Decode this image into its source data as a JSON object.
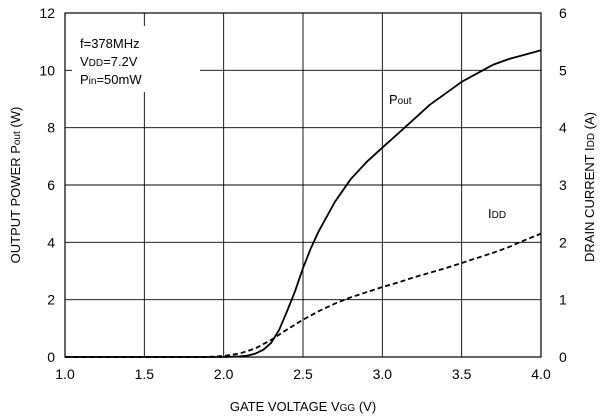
{
  "chart_data": {
    "type": "line",
    "xlabel": {
      "main": "GATE VOLTAGE V",
      "sub": "GG",
      "tail": " (V)"
    },
    "ylabel_left": {
      "main": "OUTPUT POWER P",
      "sub": "out",
      "tail": " (W)"
    },
    "ylabel_right": {
      "main": "DRAIN CURRENT I",
      "sub": "DD",
      "tail": " (A)"
    },
    "xlim": [
      1.0,
      4.0
    ],
    "ylim_left": [
      0,
      12
    ],
    "ylim_right": [
      0,
      6
    ],
    "x_ticks": [
      "1.0",
      "1.5",
      "2.0",
      "2.5",
      "3.0",
      "3.5",
      "4.0"
    ],
    "y_ticks_left": [
      "0",
      "2",
      "4",
      "6",
      "8",
      "10",
      "12"
    ],
    "y_ticks_right": [
      "0",
      "1",
      "2",
      "3",
      "4",
      "5",
      "6"
    ],
    "grid": true,
    "conditions": [
      {
        "main": "f=378MHz",
        "sub": "",
        "tail": ""
      },
      {
        "main": "V",
        "sub": "DD",
        "tail": "=7.2V"
      },
      {
        "main": "P",
        "sub": "in",
        "tail": "=50mW"
      }
    ],
    "series": [
      {
        "name": "Pout",
        "label_main": "P",
        "label_sub": "out",
        "axis": "left",
        "style": "solid",
        "x": [
          1.0,
          1.5,
          2.0,
          2.1,
          2.15,
          2.2,
          2.25,
          2.3,
          2.35,
          2.4,
          2.45,
          2.5,
          2.55,
          2.6,
          2.7,
          2.8,
          2.9,
          3.0,
          3.1,
          3.2,
          3.3,
          3.4,
          3.5,
          3.6,
          3.7,
          3.8,
          3.9,
          4.0
        ],
        "values": [
          0,
          0,
          0,
          0.02,
          0.05,
          0.12,
          0.25,
          0.5,
          0.95,
          1.6,
          2.3,
          3.1,
          3.8,
          4.4,
          5.4,
          6.2,
          6.8,
          7.3,
          7.8,
          8.3,
          8.8,
          9.2,
          9.6,
          9.9,
          10.2,
          10.4,
          10.55,
          10.7
        ]
      },
      {
        "name": "IDD",
        "label_main": "I",
        "label_sub": "DD",
        "axis": "right",
        "style": "dashed",
        "x": [
          1.0,
          1.5,
          1.9,
          2.0,
          2.1,
          2.2,
          2.3,
          2.4,
          2.5,
          2.6,
          2.7,
          2.8,
          2.9,
          3.0,
          3.1,
          3.2,
          3.3,
          3.4,
          3.5,
          3.6,
          3.7,
          3.8,
          3.9,
          4.0
        ],
        "values": [
          0,
          0,
          0,
          0.02,
          0.06,
          0.15,
          0.3,
          0.48,
          0.65,
          0.8,
          0.93,
          1.04,
          1.13,
          1.22,
          1.3,
          1.39,
          1.47,
          1.55,
          1.64,
          1.73,
          1.82,
          1.92,
          2.04,
          2.15
        ]
      }
    ]
  }
}
